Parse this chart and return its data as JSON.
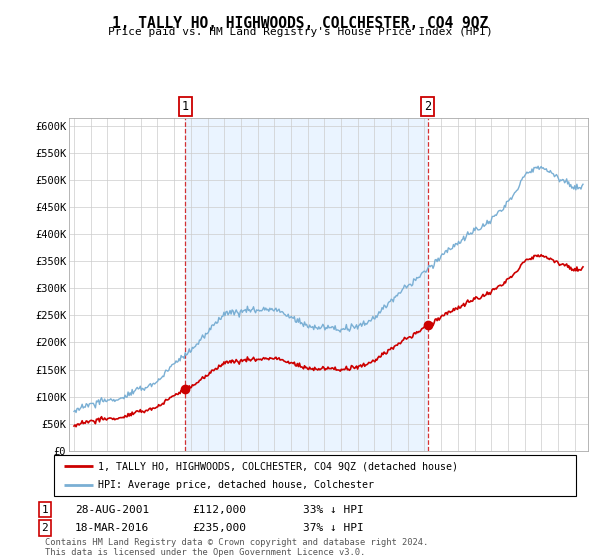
{
  "title": "1, TALLY HO, HIGHWOODS, COLCHESTER, CO4 9QZ",
  "subtitle": "Price paid vs. HM Land Registry's House Price Index (HPI)",
  "ylabel_ticks": [
    "£0",
    "£50K",
    "£100K",
    "£150K",
    "£200K",
    "£250K",
    "£300K",
    "£350K",
    "£400K",
    "£450K",
    "£500K",
    "£550K",
    "£600K"
  ],
  "ytick_vals": [
    0,
    50000,
    100000,
    150000,
    200000,
    250000,
    300000,
    350000,
    400000,
    450000,
    500000,
    550000,
    600000
  ],
  "ylim": [
    0,
    615000
  ],
  "purchase1_date": 2001.66,
  "purchase1_price": 112000,
  "purchase2_date": 2016.21,
  "purchase2_price": 235000,
  "xstart": 1995,
  "xend": 2025.5,
  "legend_entries": [
    "1, TALLY HO, HIGHWOODS, COLCHESTER, CO4 9QZ (detached house)",
    "HPI: Average price, detached house, Colchester"
  ],
  "table_rows": [
    {
      "num": "1",
      "date": "28-AUG-2001",
      "price": "£112,000",
      "hpi": "33% ↓ HPI"
    },
    {
      "num": "2",
      "date": "18-MAR-2016",
      "price": "£235,000",
      "hpi": "37% ↓ HPI"
    }
  ],
  "footnote": "Contains HM Land Registry data © Crown copyright and database right 2024.\nThis data is licensed under the Open Government Licence v3.0.",
  "line_color_price": "#cc0000",
  "line_color_hpi": "#7aafd4",
  "vline_color": "#cc0000",
  "shade_color": "#ddeeff",
  "background_color": "#ffffff",
  "grid_color": "#cccccc",
  "dot_color": "#cc0000"
}
